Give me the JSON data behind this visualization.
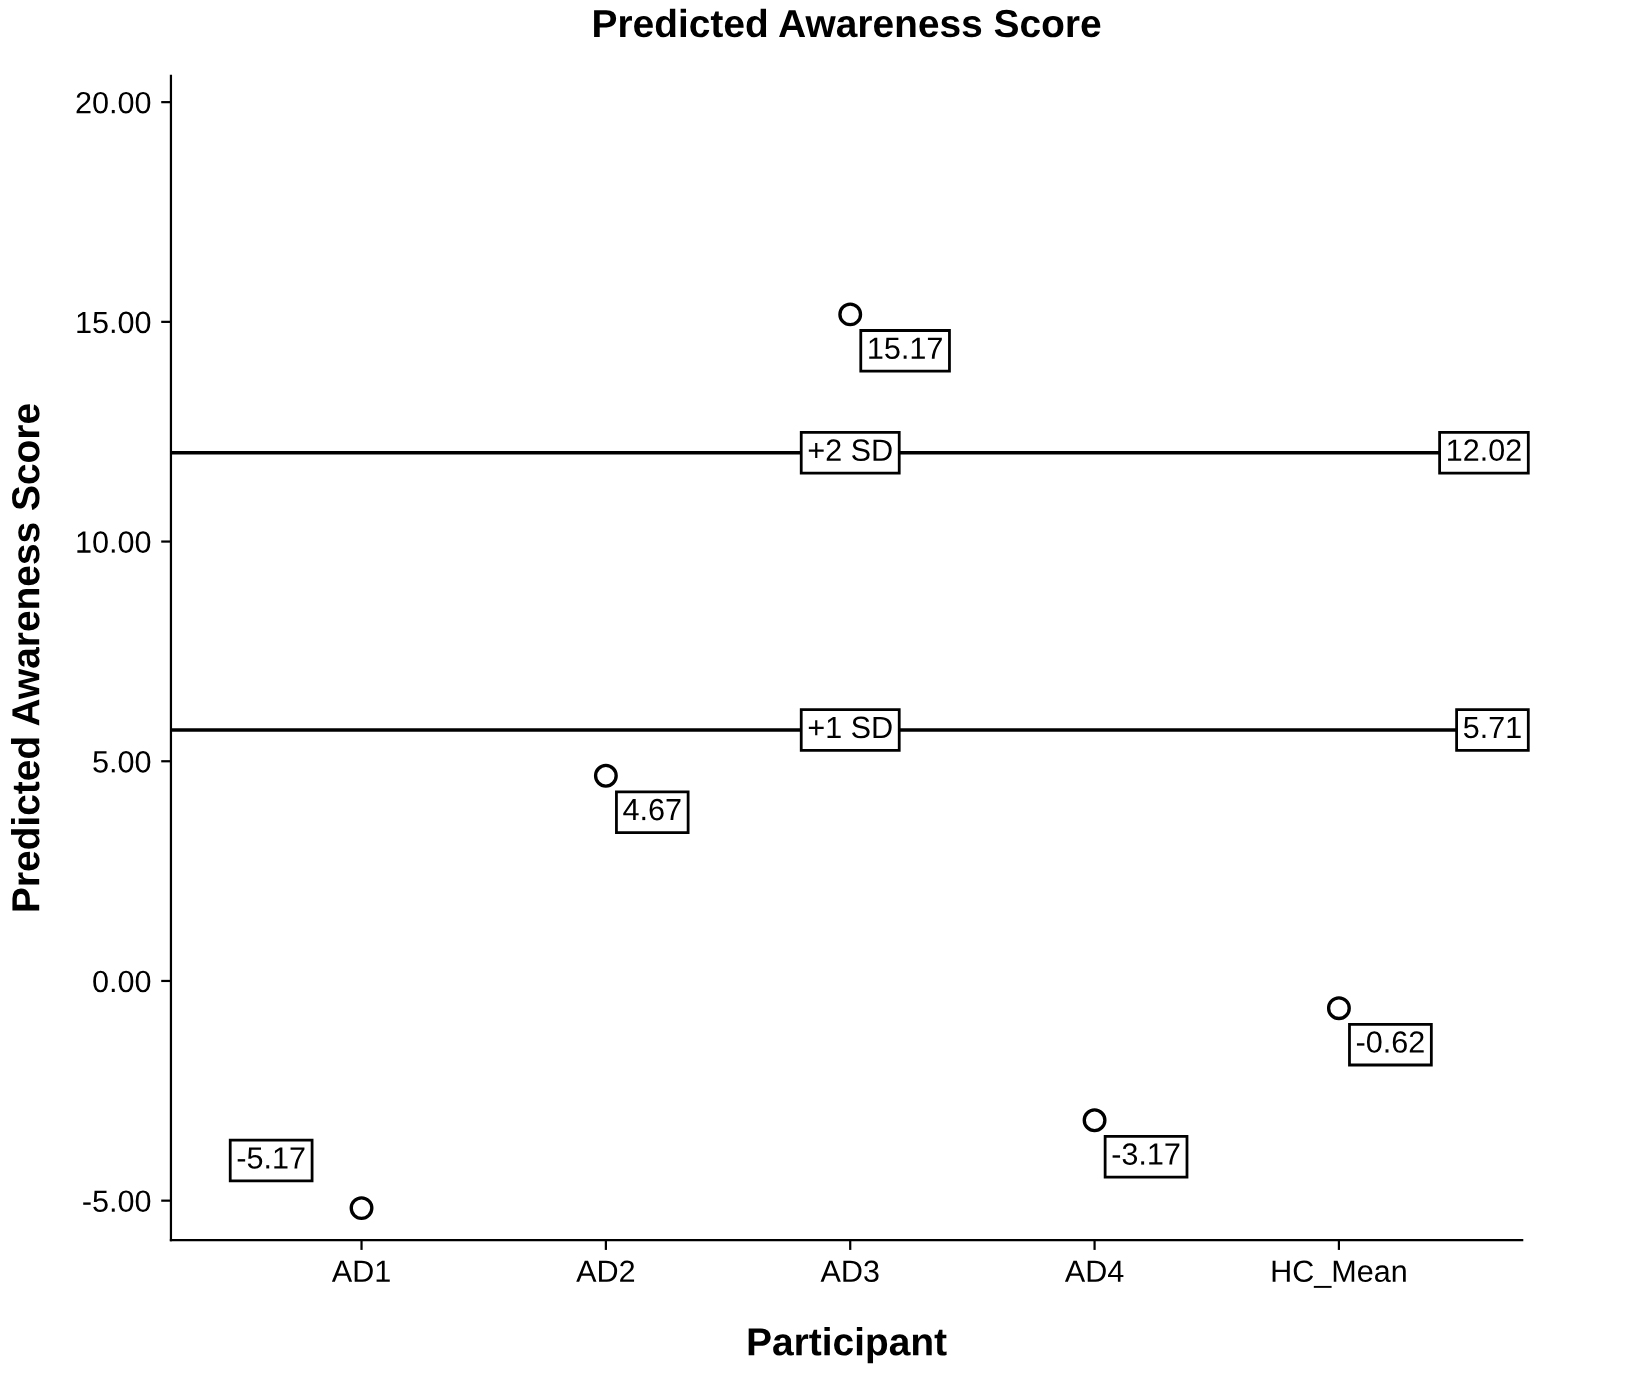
{
  "chart_data": {
    "type": "scatter",
    "title": "Predicted Awareness Score",
    "xlabel": "Participant",
    "ylabel": "Predicted Awareness Score",
    "categories": [
      "AD1",
      "AD2",
      "AD3",
      "AD4",
      "HC_Mean"
    ],
    "values": [
      -5.17,
      4.67,
      15.17,
      -3.17,
      -0.62
    ],
    "color": "#000000",
    "marker": "circle",
    "data_labels": true,
    "ylim": [
      -5.9,
      20.6
    ],
    "yticks": [
      {
        "value": -5,
        "label": "-5.00"
      },
      {
        "value": 0,
        "label": "0.00"
      },
      {
        "value": 5,
        "label": "5.00"
      },
      {
        "value": 10,
        "label": "10.00"
      },
      {
        "value": 15,
        "label": "15.00"
      },
      {
        "value": 20,
        "label": "20.00"
      }
    ],
    "ref_lines": [
      {
        "axis": "y",
        "value": 12.02,
        "label": "+2 SD",
        "color": "#000000",
        "line_style": "solid"
      },
      {
        "axis": "y",
        "value": 5.71,
        "label": "+1 SD",
        "color": "#000000",
        "line_style": "solid"
      }
    ],
    "annotations": [
      {
        "text": "12.02",
        "y": 12.02
      },
      {
        "text": "5.71",
        "y": 5.71
      }
    ],
    "grid": false,
    "legend": false
  }
}
